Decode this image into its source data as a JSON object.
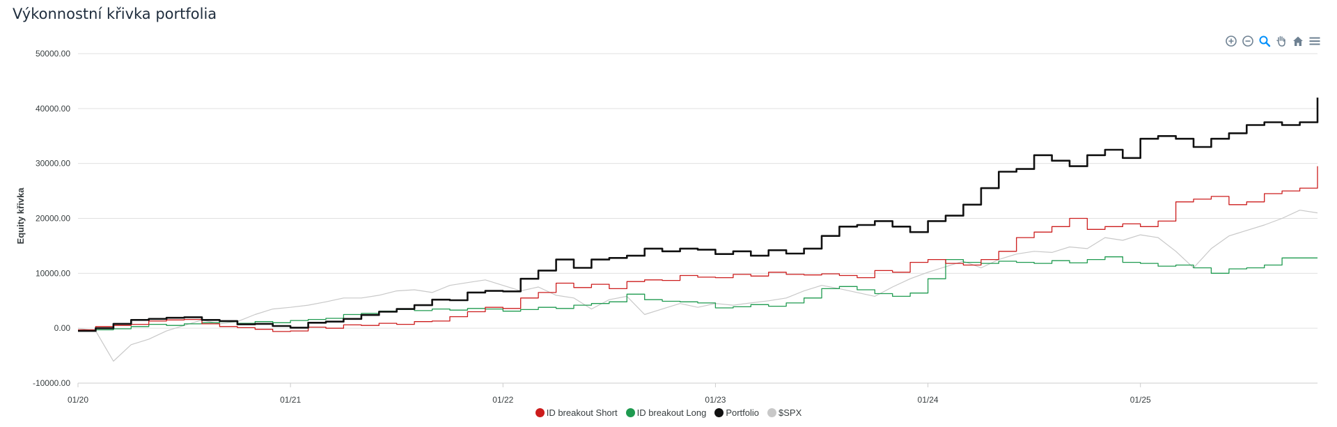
{
  "page": {
    "title": "Výkonnostní křivka portfolia"
  },
  "toolbar": {
    "icons": [
      "zoom-in-icon",
      "zoom-out-icon",
      "zoom-selection-icon",
      "pan-hand-icon",
      "home-reset-icon",
      "menu-icon"
    ],
    "active_color": "#008ffb",
    "default_color": "#6e8192"
  },
  "chart_data": {
    "type": "line",
    "title": "Výkonnostní křivka portfolia",
    "xlabel": "",
    "ylabel": "Equity křivka",
    "x_ticks": [
      "01/20",
      "01/21",
      "01/22",
      "01/23",
      "01/24",
      "01/25"
    ],
    "xlim": [
      "2020-01",
      "2025-11"
    ],
    "y_ticks": [
      "-10000.00",
      "0.00",
      "10000.00",
      "20000.00",
      "30000.00",
      "40000.00",
      "50000.00"
    ],
    "ylim": [
      -10000,
      50000
    ],
    "grid": true,
    "legend_position": "bottom",
    "series": [
      {
        "name": "ID breakout Short",
        "color": "#cc1c1c",
        "width": 1.3,
        "points": [
          [
            "2020-01",
            -300
          ],
          [
            "2020-02",
            300
          ],
          [
            "2020-03",
            500
          ],
          [
            "2020-04",
            700
          ],
          [
            "2020-05",
            1300
          ],
          [
            "2020-06",
            1500
          ],
          [
            "2020-07",
            1600
          ],
          [
            "2020-08",
            800
          ],
          [
            "2020-09",
            300
          ],
          [
            "2020-10",
            100
          ],
          [
            "2020-11",
            -200
          ],
          [
            "2020-12",
            -600
          ],
          [
            "2021-01",
            -500
          ],
          [
            "2021-02",
            200
          ],
          [
            "2021-03",
            0
          ],
          [
            "2021-04",
            600
          ],
          [
            "2021-05",
            500
          ],
          [
            "2021-06",
            900
          ],
          [
            "2021-07",
            700
          ],
          [
            "2021-08",
            1200
          ],
          [
            "2021-09",
            1300
          ],
          [
            "2021-10",
            2100
          ],
          [
            "2021-11",
            3000
          ],
          [
            "2021-12",
            3800
          ],
          [
            "2022-01",
            3600
          ],
          [
            "2022-02",
            5500
          ],
          [
            "2022-03",
            6500
          ],
          [
            "2022-04",
            8200
          ],
          [
            "2022-05",
            7400
          ],
          [
            "2022-06",
            8000
          ],
          [
            "2022-07",
            7200
          ],
          [
            "2022-08",
            8500
          ],
          [
            "2022-09",
            8800
          ],
          [
            "2022-10",
            8700
          ],
          [
            "2022-11",
            9600
          ],
          [
            "2022-12",
            9300
          ],
          [
            "2023-01",
            9200
          ],
          [
            "2023-02",
            9800
          ],
          [
            "2023-03",
            9500
          ],
          [
            "2023-04",
            10200
          ],
          [
            "2023-05",
            9800
          ],
          [
            "2023-06",
            9700
          ],
          [
            "2023-07",
            9900
          ],
          [
            "2023-08",
            9600
          ],
          [
            "2023-09",
            9200
          ],
          [
            "2023-10",
            10500
          ],
          [
            "2023-11",
            10200
          ],
          [
            "2023-12",
            12000
          ],
          [
            "2024-01",
            12500
          ],
          [
            "2024-02",
            11800
          ],
          [
            "2024-03",
            11500
          ],
          [
            "2024-04",
            12500
          ],
          [
            "2024-05",
            14000
          ],
          [
            "2024-06",
            16500
          ],
          [
            "2024-07",
            17500
          ],
          [
            "2024-08",
            18500
          ],
          [
            "2024-09",
            20000
          ],
          [
            "2024-10",
            18000
          ],
          [
            "2024-11",
            18500
          ],
          [
            "2024-12",
            19000
          ],
          [
            "2025-01",
            18500
          ],
          [
            "2025-02",
            19500
          ],
          [
            "2025-03",
            23000
          ],
          [
            "2025-04",
            23500
          ],
          [
            "2025-05",
            24000
          ],
          [
            "2025-06",
            22500
          ],
          [
            "2025-07",
            23000
          ],
          [
            "2025-08",
            24500
          ],
          [
            "2025-09",
            25000
          ],
          [
            "2025-10",
            25500
          ],
          [
            "2025-11",
            29500
          ]
        ]
      },
      {
        "name": "ID breakout Long",
        "color": "#1e9a4f",
        "width": 1.3,
        "points": [
          [
            "2020-01",
            -400
          ],
          [
            "2020-02",
            -300
          ],
          [
            "2020-03",
            -100
          ],
          [
            "2020-04",
            300
          ],
          [
            "2020-05",
            700
          ],
          [
            "2020-06",
            500
          ],
          [
            "2020-07",
            800
          ],
          [
            "2020-08",
            1000
          ],
          [
            "2020-09",
            1200
          ],
          [
            "2020-10",
            900
          ],
          [
            "2020-11",
            1200
          ],
          [
            "2020-12",
            1000
          ],
          [
            "2021-01",
            1400
          ],
          [
            "2021-02",
            1600
          ],
          [
            "2021-03",
            1800
          ],
          [
            "2021-04",
            2500
          ],
          [
            "2021-05",
            2700
          ],
          [
            "2021-06",
            3100
          ],
          [
            "2021-07",
            3400
          ],
          [
            "2021-08",
            3200
          ],
          [
            "2021-09",
            3500
          ],
          [
            "2021-10",
            3300
          ],
          [
            "2021-11",
            3600
          ],
          [
            "2021-12",
            3500
          ],
          [
            "2022-01",
            3100
          ],
          [
            "2022-02",
            3400
          ],
          [
            "2022-03",
            3800
          ],
          [
            "2022-04",
            3600
          ],
          [
            "2022-05",
            4200
          ],
          [
            "2022-06",
            4500
          ],
          [
            "2022-07",
            4800
          ],
          [
            "2022-08",
            6200
          ],
          [
            "2022-09",
            5200
          ],
          [
            "2022-10",
            4900
          ],
          [
            "2022-11",
            4800
          ],
          [
            "2022-12",
            4600
          ],
          [
            "2023-01",
            3700
          ],
          [
            "2023-02",
            3900
          ],
          [
            "2023-03",
            4300
          ],
          [
            "2023-04",
            4000
          ],
          [
            "2023-05",
            4600
          ],
          [
            "2023-06",
            5500
          ],
          [
            "2023-07",
            7200
          ],
          [
            "2023-08",
            7600
          ],
          [
            "2023-09",
            7000
          ],
          [
            "2023-10",
            6300
          ],
          [
            "2023-11",
            5800
          ],
          [
            "2023-12",
            6400
          ],
          [
            "2024-01",
            9000
          ],
          [
            "2024-02",
            12500
          ],
          [
            "2024-03",
            12000
          ],
          [
            "2024-04",
            11800
          ],
          [
            "2024-05",
            12200
          ],
          [
            "2024-06",
            12000
          ],
          [
            "2024-07",
            11800
          ],
          [
            "2024-08",
            12300
          ],
          [
            "2024-09",
            11900
          ],
          [
            "2024-10",
            12500
          ],
          [
            "2024-11",
            13000
          ],
          [
            "2024-12",
            12000
          ],
          [
            "2025-01",
            11800
          ],
          [
            "2025-02",
            11300
          ],
          [
            "2025-03",
            11500
          ],
          [
            "2025-04",
            11000
          ],
          [
            "2025-05",
            10000
          ],
          [
            "2025-06",
            10800
          ],
          [
            "2025-07",
            11000
          ],
          [
            "2025-08",
            11500
          ],
          [
            "2025-09",
            12800
          ],
          [
            "2025-10",
            12800
          ],
          [
            "2025-11",
            12800
          ]
        ]
      },
      {
        "name": "Portfolio",
        "color": "#111111",
        "width": 2.6,
        "points": [
          [
            "2020-01",
            -500
          ],
          [
            "2020-02",
            0
          ],
          [
            "2020-03",
            800
          ],
          [
            "2020-04",
            1500
          ],
          [
            "2020-05",
            1700
          ],
          [
            "2020-06",
            1900
          ],
          [
            "2020-07",
            2000
          ],
          [
            "2020-08",
            1500
          ],
          [
            "2020-09",
            1300
          ],
          [
            "2020-10",
            700
          ],
          [
            "2020-11",
            800
          ],
          [
            "2020-12",
            400
          ],
          [
            "2021-01",
            100
          ],
          [
            "2021-02",
            1000
          ],
          [
            "2021-03",
            1200
          ],
          [
            "2021-04",
            1700
          ],
          [
            "2021-05",
            2400
          ],
          [
            "2021-06",
            3000
          ],
          [
            "2021-07",
            3500
          ],
          [
            "2021-08",
            4200
          ],
          [
            "2021-09",
            5200
          ],
          [
            "2021-10",
            5100
          ],
          [
            "2021-11",
            6500
          ],
          [
            "2021-12",
            6800
          ],
          [
            "2022-01",
            6700
          ],
          [
            "2022-02",
            9000
          ],
          [
            "2022-03",
            10500
          ],
          [
            "2022-04",
            12500
          ],
          [
            "2022-05",
            11000
          ],
          [
            "2022-06",
            12500
          ],
          [
            "2022-07",
            12800
          ],
          [
            "2022-08",
            13200
          ],
          [
            "2022-09",
            14500
          ],
          [
            "2022-10",
            14000
          ],
          [
            "2022-11",
            14500
          ],
          [
            "2022-12",
            14300
          ],
          [
            "2023-01",
            13500
          ],
          [
            "2023-02",
            14000
          ],
          [
            "2023-03",
            13200
          ],
          [
            "2023-04",
            14200
          ],
          [
            "2023-05",
            13600
          ],
          [
            "2023-06",
            14500
          ],
          [
            "2023-07",
            16800
          ],
          [
            "2023-08",
            18500
          ],
          [
            "2023-09",
            18800
          ],
          [
            "2023-10",
            19500
          ],
          [
            "2023-11",
            18500
          ],
          [
            "2023-12",
            17500
          ],
          [
            "2024-01",
            19500
          ],
          [
            "2024-02",
            20500
          ],
          [
            "2024-03",
            22500
          ],
          [
            "2024-04",
            25500
          ],
          [
            "2024-05",
            28500
          ],
          [
            "2024-06",
            29000
          ],
          [
            "2024-07",
            31500
          ],
          [
            "2024-08",
            30500
          ],
          [
            "2024-09",
            29500
          ],
          [
            "2024-10",
            31500
          ],
          [
            "2024-11",
            32500
          ],
          [
            "2024-12",
            31000
          ],
          [
            "2025-01",
            34500
          ],
          [
            "2025-02",
            35000
          ],
          [
            "2025-03",
            34500
          ],
          [
            "2025-04",
            33000
          ],
          [
            "2025-05",
            34500
          ],
          [
            "2025-06",
            35500
          ],
          [
            "2025-07",
            37000
          ],
          [
            "2025-08",
            37500
          ],
          [
            "2025-09",
            37000
          ],
          [
            "2025-10",
            37500
          ],
          [
            "2025-11",
            42000
          ]
        ]
      },
      {
        "name": "$SPX",
        "color": "#c8c8c8",
        "width": 1.2,
        "points": [
          [
            "2020-01",
            0
          ],
          [
            "2020-02",
            -500
          ],
          [
            "2020-03",
            -6000
          ],
          [
            "2020-04",
            -3000
          ],
          [
            "2020-05",
            -2000
          ],
          [
            "2020-06",
            -500
          ],
          [
            "2020-07",
            500
          ],
          [
            "2020-08",
            1500
          ],
          [
            "2020-09",
            800
          ],
          [
            "2020-10",
            1200
          ],
          [
            "2020-11",
            2500
          ],
          [
            "2020-12",
            3500
          ],
          [
            "2021-01",
            3800
          ],
          [
            "2021-02",
            4200
          ],
          [
            "2021-03",
            4800
          ],
          [
            "2021-04",
            5500
          ],
          [
            "2021-05",
            5500
          ],
          [
            "2021-06",
            6000
          ],
          [
            "2021-07",
            6800
          ],
          [
            "2021-08",
            7000
          ],
          [
            "2021-09",
            6500
          ],
          [
            "2021-10",
            7800
          ],
          [
            "2021-11",
            8300
          ],
          [
            "2021-12",
            8800
          ],
          [
            "2022-01",
            7800
          ],
          [
            "2022-02",
            6800
          ],
          [
            "2022-03",
            7500
          ],
          [
            "2022-04",
            6000
          ],
          [
            "2022-05",
            5500
          ],
          [
            "2022-06",
            3500
          ],
          [
            "2022-07",
            5200
          ],
          [
            "2022-08",
            5800
          ],
          [
            "2022-09",
            2500
          ],
          [
            "2022-10",
            3500
          ],
          [
            "2022-11",
            4500
          ],
          [
            "2022-12",
            3800
          ],
          [
            "2023-01",
            4500
          ],
          [
            "2023-02",
            4200
          ],
          [
            "2023-03",
            4600
          ],
          [
            "2023-04",
            5000
          ],
          [
            "2023-05",
            5500
          ],
          [
            "2023-06",
            6800
          ],
          [
            "2023-07",
            7800
          ],
          [
            "2023-08",
            7200
          ],
          [
            "2023-09",
            6500
          ],
          [
            "2023-10",
            5800
          ],
          [
            "2023-11",
            7500
          ],
          [
            "2023-12",
            9000
          ],
          [
            "2024-01",
            10200
          ],
          [
            "2024-02",
            11200
          ],
          [
            "2024-03",
            12200
          ],
          [
            "2024-04",
            11000
          ],
          [
            "2024-05",
            12500
          ],
          [
            "2024-06",
            13500
          ],
          [
            "2024-07",
            14000
          ],
          [
            "2024-08",
            13800
          ],
          [
            "2024-09",
            14800
          ],
          [
            "2024-10",
            14500
          ],
          [
            "2024-11",
            16500
          ],
          [
            "2024-12",
            16000
          ],
          [
            "2025-01",
            17000
          ],
          [
            "2025-02",
            16500
          ],
          [
            "2025-03",
            14000
          ],
          [
            "2025-04",
            11000
          ],
          [
            "2025-05",
            14500
          ],
          [
            "2025-06",
            16800
          ],
          [
            "2025-07",
            17800
          ],
          [
            "2025-08",
            18800
          ],
          [
            "2025-09",
            20000
          ],
          [
            "2025-10",
            21500
          ],
          [
            "2025-11",
            21000
          ]
        ]
      }
    ]
  }
}
